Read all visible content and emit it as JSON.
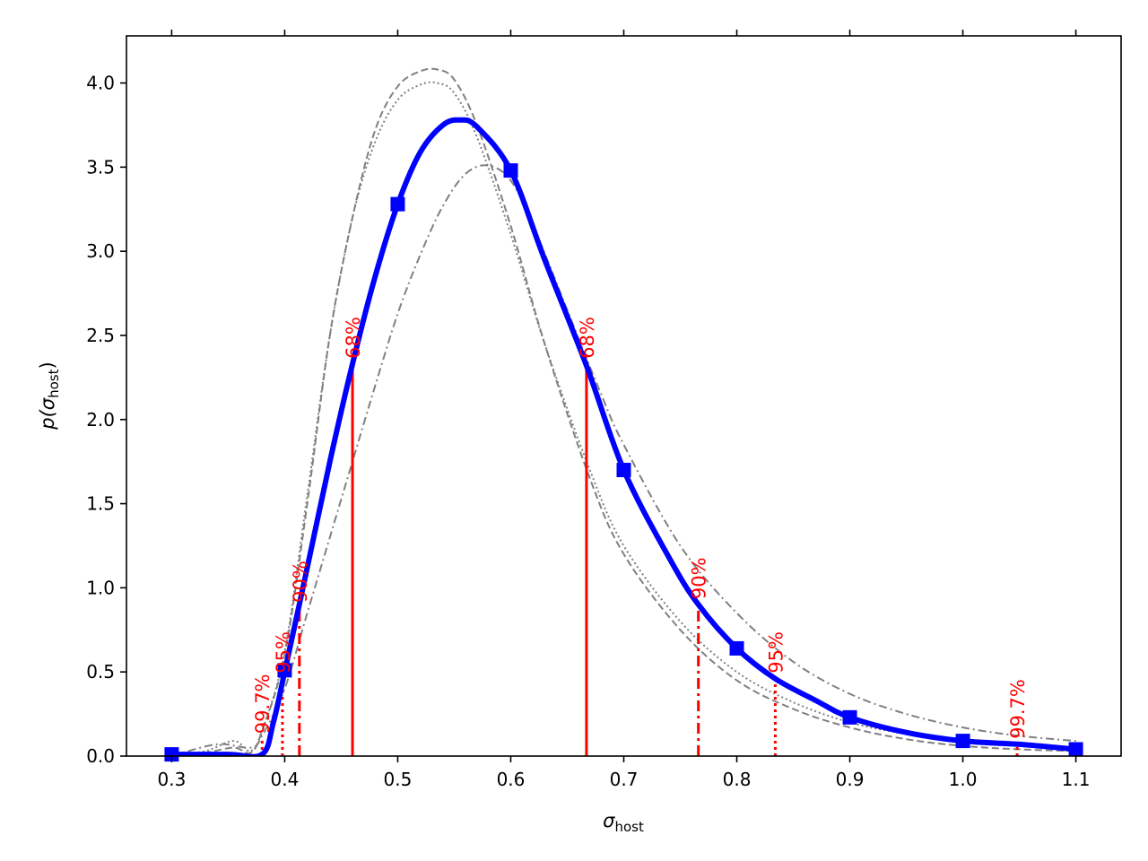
{
  "chart_data": {
    "type": "line",
    "xlabel": {
      "base": "σ",
      "sub": "host"
    },
    "ylabel": {
      "prefix": "p(",
      "base": "σ",
      "sub": "host",
      "suffix": ")"
    },
    "xlim": [
      0.26,
      1.14
    ],
    "ylim": [
      0.0,
      4.28
    ],
    "xticks": [
      0.3,
      0.4,
      0.5,
      0.6,
      0.7,
      0.8,
      0.9,
      1.0,
      1.1
    ],
    "xtick_labels": [
      "0.3",
      "0.4",
      "0.5",
      "0.6",
      "0.7",
      "0.8",
      "0.9",
      "1.0",
      "1.1"
    ],
    "yticks": [
      0.0,
      0.5,
      1.0,
      1.5,
      2.0,
      2.5,
      3.0,
      3.5,
      4.0
    ],
    "ytick_labels": [
      "0.0",
      "0.5",
      "1.0",
      "1.5",
      "2.0",
      "2.5",
      "3.0",
      "3.5",
      "4.0"
    ],
    "grid": false,
    "colors": {
      "main": "#0000ff",
      "aux": "#808080",
      "interval": "#ff0000"
    },
    "main_series": {
      "x": [
        0.3,
        0.35,
        0.38,
        0.39,
        0.4,
        0.42,
        0.44,
        0.46,
        0.48,
        0.5,
        0.52,
        0.54,
        0.555,
        0.57,
        0.6,
        0.63,
        0.667,
        0.7,
        0.74,
        0.766,
        0.8,
        0.834,
        0.87,
        0.9,
        0.95,
        1.0,
        1.05,
        1.1
      ],
      "y": [
        0.01,
        0.01,
        0.01,
        0.2,
        0.5,
        1.12,
        1.75,
        2.33,
        2.85,
        3.28,
        3.59,
        3.75,
        3.78,
        3.74,
        3.48,
        2.95,
        2.32,
        1.7,
        1.18,
        0.9,
        0.64,
        0.46,
        0.33,
        0.23,
        0.14,
        0.09,
        0.07,
        0.04
      ]
    },
    "markers": {
      "x": [
        0.3,
        0.4,
        0.5,
        0.6,
        0.7,
        0.8,
        0.9,
        1.0,
        1.1
      ],
      "y": [
        0.01,
        0.51,
        3.28,
        3.48,
        1.7,
        0.64,
        0.23,
        0.09,
        0.04
      ]
    },
    "aux_series": [
      {
        "style": "dashed",
        "x": [
          0.3,
          0.33,
          0.355,
          0.37,
          0.38,
          0.4,
          0.42,
          0.44,
          0.46,
          0.48,
          0.5,
          0.52,
          0.535,
          0.55,
          0.57,
          0.6,
          0.63,
          0.67,
          0.7,
          0.75,
          0.8,
          0.85,
          0.9,
          0.95,
          1.0,
          1.05,
          1.1
        ],
        "y": [
          0.0,
          0.02,
          0.05,
          0.02,
          0.15,
          0.6,
          1.5,
          2.5,
          3.2,
          3.72,
          3.98,
          4.07,
          4.08,
          4.02,
          3.75,
          3.15,
          2.45,
          1.65,
          1.2,
          0.75,
          0.45,
          0.28,
          0.17,
          0.1,
          0.06,
          0.04,
          0.03
        ]
      },
      {
        "style": "dotted",
        "x": [
          0.3,
          0.33,
          0.355,
          0.37,
          0.38,
          0.4,
          0.42,
          0.44,
          0.46,
          0.48,
          0.5,
          0.52,
          0.535,
          0.55,
          0.57,
          0.6,
          0.63,
          0.67,
          0.7,
          0.75,
          0.8,
          0.85,
          0.9,
          0.95,
          1.0,
          1.05,
          1.1
        ],
        "y": [
          0.0,
          0.03,
          0.09,
          0.03,
          0.15,
          0.62,
          1.55,
          2.5,
          3.2,
          3.65,
          3.9,
          3.99,
          4.0,
          3.94,
          3.68,
          3.1,
          2.45,
          1.7,
          1.25,
          0.8,
          0.5,
          0.32,
          0.2,
          0.13,
          0.08,
          0.06,
          0.05
        ]
      },
      {
        "style": "dashdot",
        "x": [
          0.3,
          0.34,
          0.37,
          0.38,
          0.4,
          0.42,
          0.44,
          0.46,
          0.48,
          0.5,
          0.52,
          0.54,
          0.56,
          0.58,
          0.6,
          0.62,
          0.65,
          0.68,
          0.7,
          0.75,
          0.8,
          0.85,
          0.9,
          0.95,
          1.0,
          1.05,
          1.1
        ],
        "y": [
          0.0,
          0.07,
          0.05,
          0.12,
          0.4,
          0.85,
          1.3,
          1.75,
          2.2,
          2.63,
          2.98,
          3.27,
          3.46,
          3.51,
          3.42,
          3.15,
          2.65,
          2.15,
          1.85,
          1.25,
          0.85,
          0.56,
          0.37,
          0.25,
          0.17,
          0.12,
          0.09
        ]
      }
    ],
    "interval_lines": [
      {
        "x": 0.38,
        "ymax": 0.1,
        "style": "dotted",
        "label": "99.7%"
      },
      {
        "x": 0.398,
        "ymax": 0.46,
        "style": "dotted",
        "label": "95%"
      },
      {
        "x": 0.413,
        "ymax": 0.88,
        "style": "dashdot",
        "label": "90%"
      },
      {
        "x": 0.46,
        "ymax": 2.33,
        "style": "solid",
        "label": "68%"
      },
      {
        "x": 0.667,
        "ymax": 2.33,
        "style": "solid",
        "label": "68%"
      },
      {
        "x": 0.766,
        "ymax": 0.9,
        "style": "dashdot",
        "label": "90%"
      },
      {
        "x": 0.834,
        "ymax": 0.46,
        "style": "dotted",
        "label": "95%"
      },
      {
        "x": 1.048,
        "ymax": 0.07,
        "style": "dotted",
        "label": "99.7%"
      }
    ]
  }
}
